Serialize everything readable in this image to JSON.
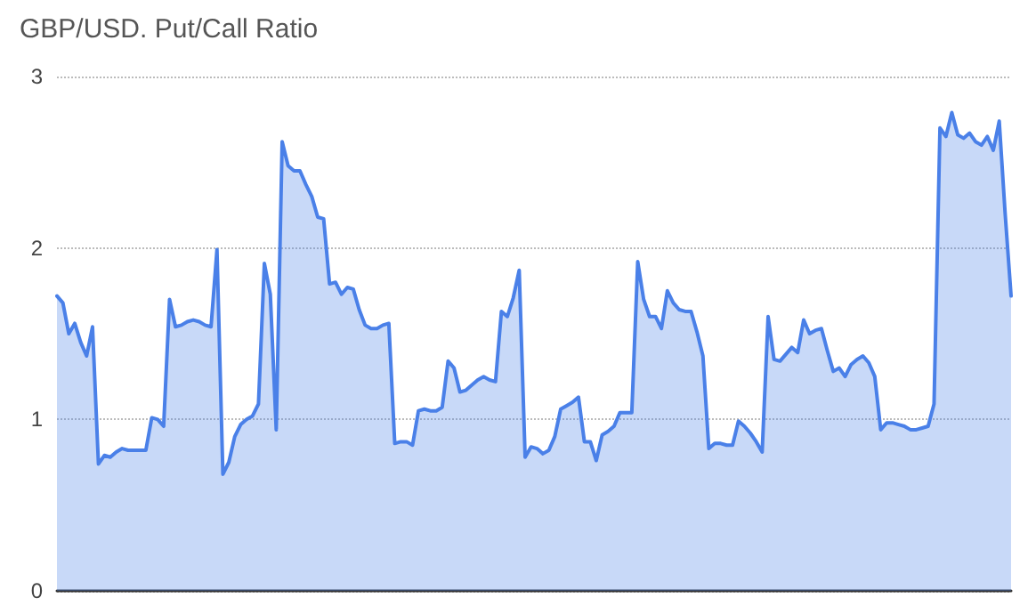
{
  "chart_data": {
    "type": "area",
    "title": "GBP/USD. Put/Call Ratio",
    "categories": [
      null,
      null,
      null,
      null,
      null,
      null,
      null,
      null,
      null,
      null,
      null,
      null,
      null,
      null,
      null,
      null,
      null,
      null,
      null,
      null,
      null,
      null,
      null,
      null,
      null,
      null,
      null,
      null,
      null,
      null,
      null,
      null,
      null,
      null,
      null,
      null,
      null,
      null,
      null,
      null,
      null,
      null,
      null,
      null,
      null,
      null,
      null,
      null,
      null,
      null,
      null,
      null,
      null,
      null,
      null,
      null,
      null,
      null,
      null,
      null,
      null,
      null,
      null,
      null,
      null,
      null,
      null,
      null,
      null,
      null,
      null,
      null,
      null,
      null,
      null,
      null,
      null,
      null,
      null,
      null,
      null,
      null,
      null,
      null,
      null,
      null,
      null,
      null,
      null,
      null,
      null,
      null,
      null,
      null,
      null,
      null,
      null,
      null,
      null,
      null,
      null,
      null,
      null,
      null,
      null,
      null,
      null,
      null,
      null,
      null,
      null,
      null,
      null,
      null,
      null,
      null,
      null,
      null,
      null,
      null,
      null,
      null,
      null,
      null,
      null,
      null,
      null,
      null,
      null,
      null,
      null,
      null,
      null,
      null,
      null,
      null,
      null,
      null,
      null,
      null,
      null,
      null,
      null,
      null,
      null,
      null,
      null,
      null,
      null,
      null,
      null,
      null,
      null,
      null,
      null,
      null,
      null,
      null,
      null,
      null,
      null,
      null
    ],
    "series": [
      {
        "color": "#4a80e8",
        "values": [
          1.72,
          1.68,
          1.5,
          1.56,
          1.45,
          1.37,
          1.54,
          0.74,
          0.79,
          0.78,
          0.81,
          0.83,
          0.82,
          0.82,
          0.82,
          0.82,
          1.01,
          1.0,
          0.96,
          1.7,
          1.54,
          1.55,
          1.57,
          1.58,
          1.57,
          1.55,
          1.54,
          1.99,
          0.68,
          0.75,
          0.9,
          0.97,
          1.0,
          1.02,
          1.09,
          1.91,
          1.73,
          0.94,
          2.62,
          2.48,
          2.45,
          2.45,
          2.37,
          2.3,
          2.18,
          2.17,
          1.79,
          1.8,
          1.73,
          1.77,
          1.76,
          1.64,
          1.55,
          1.53,
          1.53,
          1.55,
          1.56,
          0.86,
          0.87,
          0.87,
          0.85,
          1.05,
          1.06,
          1.05,
          1.05,
          1.07,
          1.34,
          1.3,
          1.16,
          1.17,
          1.2,
          1.23,
          1.25,
          1.23,
          1.22,
          1.63,
          1.6,
          1.71,
          1.87,
          0.78,
          0.84,
          0.83,
          0.8,
          0.82,
          0.9,
          1.06,
          1.08,
          1.1,
          1.13,
          0.87,
          0.87,
          0.76,
          0.91,
          0.93,
          0.96,
          1.04,
          1.04,
          1.04,
          1.92,
          1.7,
          1.6,
          1.6,
          1.53,
          1.75,
          1.68,
          1.64,
          1.63,
          1.63,
          1.51,
          1.37,
          0.83,
          0.86,
          0.86,
          0.85,
          0.85,
          0.99,
          0.96,
          0.92,
          0.87,
          0.81,
          1.6,
          1.35,
          1.34,
          1.38,
          1.42,
          1.39,
          1.58,
          1.5,
          1.52,
          1.53,
          1.4,
          1.28,
          1.3,
          1.25,
          1.32,
          1.35,
          1.37,
          1.33,
          1.25,
          0.94,
          0.98,
          0.98,
          0.97,
          0.96,
          0.94,
          0.94,
          0.95,
          0.96,
          1.09,
          2.7,
          2.65,
          2.79,
          2.66,
          2.64,
          2.67,
          2.62,
          2.6,
          2.65,
          2.57,
          2.74,
          2.2,
          1.72
        ]
      }
    ],
    "ylim": [
      0,
      3
    ],
    "yticks": [
      0,
      1,
      2,
      3
    ],
    "grid": "y",
    "marker": "none",
    "line_style": "solid"
  }
}
